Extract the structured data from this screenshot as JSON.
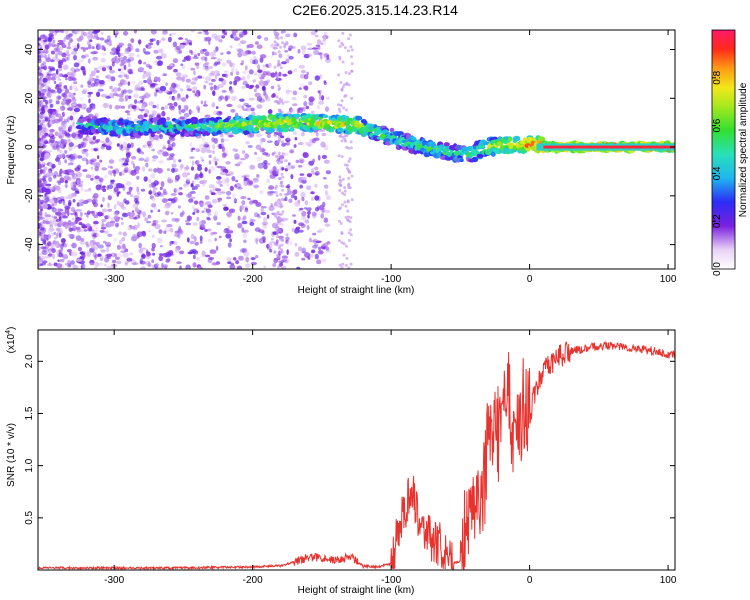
{
  "title": "C2E6.2025.315.14.23.R14",
  "chart_data": [
    {
      "type": "heatmap",
      "xlabel": "Height of straight line (km)",
      "ylabel": "Frequency (Hz)",
      "xlim": [
        -355,
        105
      ],
      "ylim": [
        -50,
        48
      ],
      "x_ticks": [
        -300,
        -200,
        -100,
        0,
        100
      ],
      "y_ticks": [
        -40,
        -20,
        0,
        20,
        40
      ],
      "colorbar": {
        "label": "Normalized spectral amplitude",
        "range": [
          0,
          1
        ],
        "ticks": [
          0.0,
          0.2,
          0.4,
          0.6,
          0.8
        ]
      },
      "ridge": {
        "x": [
          -325,
          -300,
          -250,
          -210,
          -180,
          -150,
          -125,
          -105,
          -90,
          -75,
          -60,
          -45,
          -30,
          -15,
          0,
          20,
          60,
          105
        ],
        "frequency": [
          9,
          8,
          8,
          9,
          10,
          10,
          9,
          5,
          2,
          0,
          -2,
          -3,
          0,
          1,
          1,
          0,
          0,
          0
        ],
        "amplitude": [
          0.45,
          0.5,
          0.5,
          0.65,
          0.75,
          0.75,
          0.7,
          0.55,
          0.5,
          0.55,
          0.55,
          0.5,
          0.65,
          0.75,
          0.85,
          0.95,
          0.95,
          0.95
        ]
      }
    },
    {
      "type": "line",
      "xlabel": "Height of straight line (km)",
      "ylabel": "SNR (10 * v/v)",
      "y_multiplier": "(x10",
      "y_multiplier_exp": "4",
      "xlim": [
        -355,
        105
      ],
      "ylim": [
        0,
        2.3
      ],
      "x_ticks": [
        -300,
        -200,
        -100,
        0,
        100
      ],
      "y_ticks": [
        0.5,
        1.0,
        1.5,
        2.0
      ],
      "y_tick_labels": [
        "0.5",
        "1.0",
        "1.5",
        "2.0"
      ],
      "series": [
        {
          "color": "#e8322e",
          "x": [
            -355,
            -300,
            -250,
            -200,
            -180,
            -160,
            -150,
            -140,
            -130,
            -120,
            -110,
            -100,
            -95,
            -90,
            -85,
            -80,
            -75,
            -70,
            -65,
            -60,
            -55,
            -50,
            -45,
            -42,
            -40,
            -37,
            -35,
            -32,
            -30,
            -27,
            -25,
            -22,
            -20,
            -17,
            -15,
            -12,
            -10,
            -7,
            -5,
            -2,
            0,
            5,
            10,
            15,
            20,
            30,
            40,
            50,
            60,
            70,
            80,
            90,
            100,
            105
          ],
          "y": [
            0.02,
            0.02,
            0.02,
            0.03,
            0.04,
            0.12,
            0.12,
            0.09,
            0.13,
            0.04,
            0.03,
            0.06,
            0.35,
            0.6,
            0.8,
            0.5,
            0.38,
            0.25,
            0.25,
            0.1,
            0.07,
            0.08,
            0.5,
            0.85,
            0.55,
            0.75,
            0.7,
            0.9,
            1.3,
            1.1,
            1.6,
            1.2,
            1.9,
            1.5,
            1.75,
            1.3,
            1.55,
            1.35,
            1.6,
            1.5,
            1.5,
            1.75,
            1.9,
            1.95,
            2.05,
            2.1,
            2.12,
            2.15,
            2.15,
            2.13,
            2.12,
            2.1,
            2.06,
            2.07
          ]
        }
      ]
    }
  ]
}
